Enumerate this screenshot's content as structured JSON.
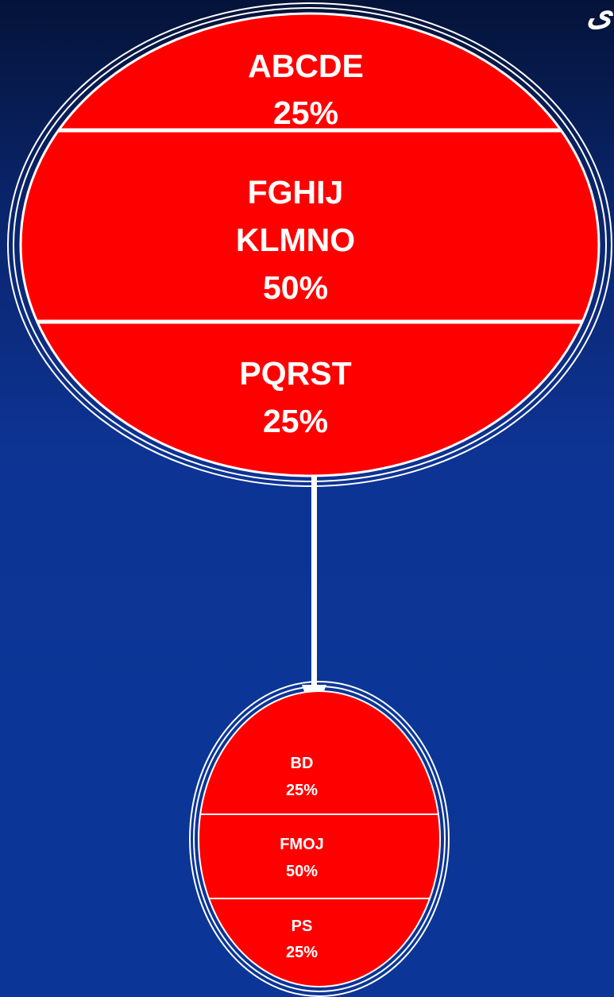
{
  "colors": {
    "background_top": "#041338",
    "background_bottom": "#0b3596",
    "ellipse_fill": "#ff0000",
    "outline": "#ffffff",
    "arrow": "#ffffff"
  },
  "corner_glyph": "ی",
  "source": {
    "sections": [
      {
        "lines": [
          "ABCDE",
          "25%"
        ]
      },
      {
        "lines": [
          "FGHIJ",
          "KLMNO",
          "50%"
        ]
      },
      {
        "lines": [
          "PQRST",
          "25%"
        ]
      }
    ]
  },
  "result": {
    "sections": [
      {
        "lines": [
          "BD",
          "25%"
        ]
      },
      {
        "lines": [
          "FMOJ",
          "50%"
        ]
      },
      {
        "lines": [
          "PS",
          "25%"
        ]
      }
    ]
  }
}
